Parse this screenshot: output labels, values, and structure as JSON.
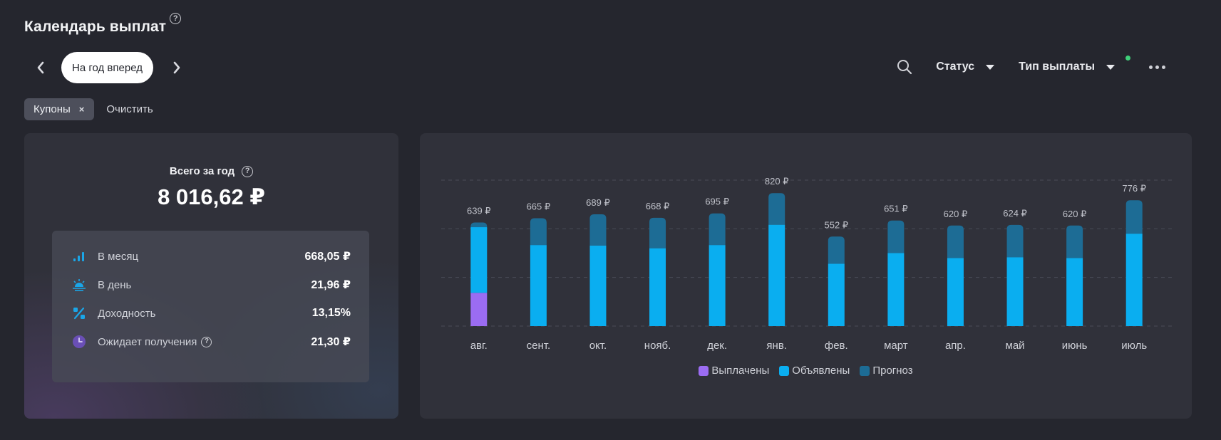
{
  "header": {
    "title": "Календарь выплат",
    "help": "?"
  },
  "period": {
    "label": "На год вперед"
  },
  "tools": {
    "status_label": "Статус",
    "type_label": "Тип выплаты"
  },
  "filters": {
    "chip_label": "Купоны",
    "chip_remove": "×",
    "clear_label": "Очистить"
  },
  "summary": {
    "total_label": "Всего за год",
    "total_value": "8 016,62 ₽",
    "stats": [
      {
        "icon": "signal-bars-icon",
        "label": "В месяц",
        "value": "668,05 ₽"
      },
      {
        "icon": "sunrise-icon",
        "label": "В день",
        "value": "21,96 ₽"
      },
      {
        "icon": "percent-icon",
        "label": "Доходность",
        "value": "13,15%"
      },
      {
        "icon": "clock-icon",
        "label": "Ожидает получения",
        "value": "21,30 ₽"
      }
    ]
  },
  "colors": {
    "paid": "#9b6cf2",
    "announced": "#0aaef0",
    "forecast": "#1d6c95"
  },
  "chart_data": {
    "type": "bar",
    "stacked": true,
    "categories": [
      "авг.",
      "сент.",
      "окт.",
      "нояб.",
      "дек.",
      "янв.",
      "фев.",
      "март",
      "апр.",
      "май",
      "июнь",
      "июль"
    ],
    "totals": [
      639,
      665,
      689,
      668,
      695,
      820,
      552,
      651,
      620,
      624,
      620,
      776
    ],
    "total_labels": [
      "639 ₽",
      "665 ₽",
      "689 ₽",
      "668 ₽",
      "695 ₽",
      "820 ₽",
      "552 ₽",
      "651 ₽",
      "620 ₽",
      "624 ₽",
      "620 ₽",
      "776 ₽"
    ],
    "series": [
      {
        "name": "Выплачены",
        "values": [
          205,
          0,
          0,
          0,
          0,
          0,
          0,
          0,
          0,
          0,
          0,
          0
        ]
      },
      {
        "name": "Объявлены",
        "values": [
          405,
          500,
          497,
          480,
          500,
          625,
          385,
          450,
          420,
          425,
          420,
          570
        ]
      },
      {
        "name": "Прогноз",
        "values": [
          29,
          165,
          192,
          188,
          195,
          195,
          167,
          201,
          200,
          199,
          200,
          206
        ]
      }
    ],
    "ylim": [
      0,
      900
    ],
    "grid": true,
    "legend": "bottom"
  }
}
